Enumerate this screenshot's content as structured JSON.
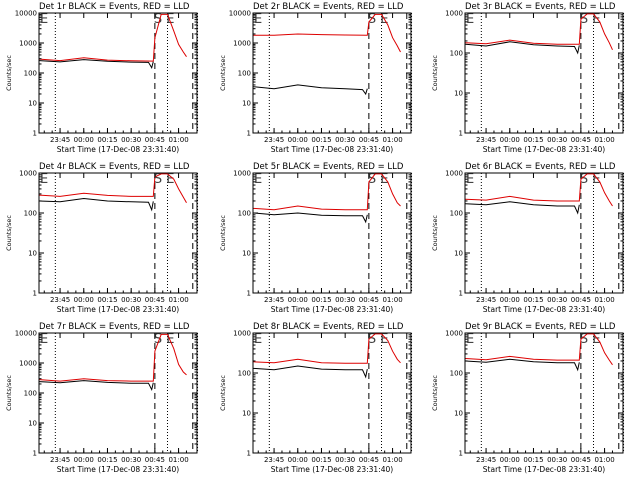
{
  "figure": {
    "colors": {
      "events": "#000000",
      "lld": "#dd0000",
      "axis": "#000000",
      "dashed": "#000000",
      "dotted": "#000000",
      "marker": "#444444"
    },
    "marker_left": "E",
    "marker_right": "S E"
  },
  "chart_data": [
    {
      "type": "line",
      "title": "Det 1r BLACK = Events, RED = LLD",
      "ylabel": "Counts/sec",
      "xlabel": "Start Time (17-Dec-08 23:31:40)",
      "yscale": "log",
      "ylim": [
        1,
        10000
      ],
      "y_ticks": [
        "1",
        "10",
        "100",
        "1000",
        "10000"
      ],
      "x_ticks": [
        "23:45",
        "00:00",
        "00:15",
        "00:30",
        "00:45",
        "01:00"
      ],
      "dashed_lines": [
        "00:45",
        "01:09"
      ],
      "dotted_lines": [
        "23:42",
        "00:53",
        "01:12"
      ],
      "series": [
        {
          "name": "Events",
          "x": [
            "23:32",
            "23:45",
            "00:00",
            "00:15",
            "00:30",
            "00:41",
            "00:43",
            "00:44"
          ],
          "values": [
            260,
            235,
            280,
            245,
            230,
            225,
            150,
            240
          ]
        },
        {
          "name": "LLD",
          "x": [
            "23:32",
            "23:45",
            "00:00",
            "00:15",
            "00:30",
            "00:44",
            "00:45",
            "00:49",
            "00:53",
            "00:57",
            "01:00",
            "01:03",
            "01:05"
          ],
          "values": [
            290,
            260,
            320,
            270,
            255,
            250,
            1500,
            9000,
            9000,
            2500,
            900,
            500,
            350
          ]
        }
      ]
    },
    {
      "type": "line",
      "title": "Det 2r BLACK = Events, RED = LLD",
      "ylabel": "Counts/sec",
      "xlabel": "Start Time (17-Dec-08 23:31:40)",
      "yscale": "log",
      "ylim": [
        1,
        10000
      ],
      "y_ticks": [
        "1",
        "10",
        "100",
        "1000",
        "10000"
      ],
      "x_ticks": [
        "23:45",
        "00:00",
        "00:15",
        "00:30",
        "00:45",
        "01:00"
      ],
      "dashed_lines": [
        "00:45",
        "01:09"
      ],
      "dotted_lines": [
        "23:42",
        "00:53",
        "01:12"
      ],
      "series": [
        {
          "name": "Events",
          "x": [
            "23:32",
            "23:45",
            "00:00",
            "00:15",
            "00:30",
            "00:41",
            "00:43",
            "00:44"
          ],
          "values": [
            35,
            30,
            40,
            32,
            30,
            28,
            20,
            30
          ]
        },
        {
          "name": "LLD",
          "x": [
            "23:32",
            "23:45",
            "00:00",
            "00:15",
            "00:30",
            "00:44",
            "00:45",
            "00:49",
            "00:53",
            "00:57",
            "01:00",
            "01:03",
            "01:05"
          ],
          "values": [
            1800,
            1800,
            2000,
            1900,
            1850,
            1800,
            5000,
            9000,
            9000,
            4000,
            1500,
            800,
            500
          ]
        }
      ]
    },
    {
      "type": "line",
      "title": "Det 3r BLACK = Events, RED = LLD",
      "ylabel": "Counts/sec",
      "xlabel": "Start Time (17-Dec-08 23:31:40)",
      "yscale": "log",
      "ylim": [
        1,
        1000
      ],
      "y_ticks": [
        "1",
        "10",
        "100",
        "1000"
      ],
      "x_ticks": [
        "23:45",
        "00:00",
        "00:15",
        "00:30",
        "00:45",
        "01:00"
      ],
      "dashed_lines": [
        "00:45",
        "01:09"
      ],
      "dotted_lines": [
        "23:42",
        "00:53",
        "01:12"
      ],
      "series": [
        {
          "name": "Events",
          "x": [
            "23:32",
            "23:45",
            "00:00",
            "00:15",
            "00:30",
            "00:41",
            "00:43",
            "00:44"
          ],
          "values": [
            165,
            150,
            190,
            160,
            150,
            145,
            100,
            155
          ]
        },
        {
          "name": "LLD",
          "x": [
            "23:32",
            "23:45",
            "00:00",
            "00:15",
            "00:30",
            "00:44",
            "00:45",
            "00:49",
            "00:53",
            "00:57",
            "01:00",
            "01:03",
            "01:05"
          ],
          "values": [
            180,
            170,
            210,
            175,
            165,
            165,
            700,
            950,
            950,
            600,
            300,
            180,
            120
          ]
        }
      ]
    },
    {
      "type": "line",
      "title": "Det 4r BLACK = Events, RED = LLD",
      "ylabel": "Counts/sec",
      "xlabel": "Start Time (17-Dec-08 23:31:40)",
      "yscale": "log",
      "ylim": [
        1,
        1000
      ],
      "y_ticks": [
        "1",
        "10",
        "100",
        "1000"
      ],
      "x_ticks": [
        "23:45",
        "00:00",
        "00:15",
        "00:30",
        "00:45",
        "01:00"
      ],
      "dashed_lines": [
        "00:45",
        "01:09"
      ],
      "dotted_lines": [
        "23:42",
        "00:53",
        "01:12"
      ],
      "series": [
        {
          "name": "Events",
          "x": [
            "23:32",
            "23:45",
            "00:00",
            "00:15",
            "00:30",
            "00:41",
            "00:43",
            "00:44"
          ],
          "values": [
            200,
            190,
            230,
            200,
            190,
            185,
            120,
            195
          ]
        },
        {
          "name": "LLD",
          "x": [
            "23:32",
            "23:45",
            "00:00",
            "00:15",
            "00:30",
            "00:44",
            "00:45",
            "00:49",
            "00:53",
            "00:57",
            "01:00",
            "01:03",
            "01:05"
          ],
          "values": [
            280,
            260,
            310,
            275,
            260,
            260,
            800,
            950,
            950,
            700,
            400,
            250,
            180
          ]
        }
      ]
    },
    {
      "type": "line",
      "title": "Det 5r BLACK = Events, RED = LLD",
      "ylabel": "Counts/sec",
      "xlabel": "Start Time (17-Dec-08 23:31:40)",
      "yscale": "log",
      "ylim": [
        1,
        1000
      ],
      "y_ticks": [
        "1",
        "10",
        "100",
        "1000"
      ],
      "x_ticks": [
        "23:45",
        "00:00",
        "00:15",
        "00:30",
        "00:45",
        "01:00"
      ],
      "dashed_lines": [
        "00:45",
        "01:09"
      ],
      "dotted_lines": [
        "23:42",
        "00:53",
        "01:12"
      ],
      "series": [
        {
          "name": "Events",
          "x": [
            "23:32",
            "23:45",
            "00:00",
            "00:15",
            "00:30",
            "00:41",
            "00:43",
            "00:44"
          ],
          "values": [
            100,
            90,
            100,
            88,
            85,
            85,
            60,
            90
          ]
        },
        {
          "name": "LLD",
          "x": [
            "23:32",
            "23:45",
            "00:00",
            "00:15",
            "00:30",
            "00:44",
            "00:45",
            "00:49",
            "00:53",
            "00:57",
            "01:00",
            "01:03",
            "01:05"
          ],
          "values": [
            130,
            120,
            150,
            125,
            120,
            120,
            600,
            950,
            950,
            600,
            300,
            180,
            150
          ]
        }
      ]
    },
    {
      "type": "line",
      "title": "Det 6r BLACK = Events, RED = LLD",
      "ylabel": "Counts/sec",
      "xlabel": "Start Time (17-Dec-08 23:31:40)",
      "yscale": "log",
      "ylim": [
        1,
        1000
      ],
      "y_ticks": [
        "1",
        "10",
        "100",
        "1000"
      ],
      "x_ticks": [
        "23:45",
        "00:00",
        "00:15",
        "00:30",
        "00:45",
        "01:00"
      ],
      "dashed_lines": [
        "00:45",
        "01:09"
      ],
      "dotted_lines": [
        "23:42",
        "00:53",
        "01:12"
      ],
      "series": [
        {
          "name": "Events",
          "x": [
            "23:32",
            "23:45",
            "00:00",
            "00:15",
            "00:30",
            "00:41",
            "00:43",
            "00:44"
          ],
          "values": [
            170,
            160,
            190,
            160,
            150,
            150,
            100,
            160
          ]
        },
        {
          "name": "LLD",
          "x": [
            "23:32",
            "23:45",
            "00:00",
            "00:15",
            "00:30",
            "00:44",
            "00:45",
            "00:49",
            "00:53",
            "00:57",
            "01:00",
            "01:03",
            "01:05"
          ],
          "values": [
            220,
            210,
            260,
            210,
            200,
            200,
            700,
            950,
            950,
            600,
            320,
            200,
            150
          ]
        }
      ]
    },
    {
      "type": "line",
      "title": "Det 7r BLACK = Events, RED = LLD",
      "ylabel": "Counts/sec",
      "xlabel": "Start Time (17-Dec-08 23:31:40)",
      "yscale": "log",
      "ylim": [
        1,
        10000
      ],
      "y_ticks": [
        "1",
        "10",
        "100",
        "1000",
        "10000"
      ],
      "x_ticks": [
        "23:45",
        "00:00",
        "00:15",
        "00:30",
        "00:45",
        "01:00"
      ],
      "dashed_lines": [
        "00:45",
        "01:09"
      ],
      "dotted_lines": [
        "23:42",
        "00:53",
        "01:12"
      ],
      "series": [
        {
          "name": "Events",
          "x": [
            "23:32",
            "23:45",
            "00:00",
            "00:15",
            "00:30",
            "00:41",
            "00:43",
            "00:44"
          ],
          "values": [
            240,
            220,
            260,
            225,
            210,
            210,
            130,
            220
          ]
        },
        {
          "name": "LLD",
          "x": [
            "23:32",
            "23:45",
            "00:00",
            "00:15",
            "00:30",
            "00:44",
            "00:45",
            "00:49",
            "00:53",
            "00:57",
            "01:00",
            "01:03",
            "01:05"
          ],
          "values": [
            280,
            250,
            300,
            260,
            250,
            250,
            2500,
            9000,
            9000,
            3000,
            900,
            500,
            400
          ]
        }
      ]
    },
    {
      "type": "line",
      "title": "Det 8r BLACK = Events, RED = LLD",
      "ylabel": "Counts/sec",
      "xlabel": "Start Time (17-Dec-08 23:31:40)",
      "yscale": "log",
      "ylim": [
        1,
        1000
      ],
      "y_ticks": [
        "1",
        "10",
        "100",
        "1000"
      ],
      "x_ticks": [
        "23:45",
        "00:00",
        "00:15",
        "00:30",
        "00:45",
        "01:00"
      ],
      "dashed_lines": [
        "00:45",
        "01:09"
      ],
      "dotted_lines": [
        "23:42",
        "00:53",
        "01:12"
      ],
      "series": [
        {
          "name": "Events",
          "x": [
            "23:32",
            "23:45",
            "00:00",
            "00:15",
            "00:30",
            "00:41",
            "00:43",
            "00:44"
          ],
          "values": [
            130,
            120,
            150,
            125,
            120,
            120,
            80,
            125
          ]
        },
        {
          "name": "LLD",
          "x": [
            "23:32",
            "23:45",
            "00:00",
            "00:15",
            "00:30",
            "00:44",
            "00:45",
            "00:49",
            "00:53",
            "00:57",
            "01:00",
            "01:03",
            "01:05"
          ],
          "values": [
            190,
            180,
            220,
            180,
            175,
            175,
            700,
            950,
            950,
            650,
            350,
            220,
            180
          ]
        }
      ]
    },
    {
      "type": "line",
      "title": "Det 9r BLACK = Events, RED = LLD",
      "ylabel": "Counts/sec",
      "xlabel": "Start Time (17-Dec-08 23:31:40)",
      "yscale": "log",
      "ylim": [
        1,
        1000
      ],
      "y_ticks": [
        "1",
        "10",
        "100",
        "1000"
      ],
      "x_ticks": [
        "23:45",
        "00:00",
        "00:15",
        "00:30",
        "00:45",
        "01:00"
      ],
      "dashed_lines": [
        "00:45",
        "01:09"
      ],
      "dotted_lines": [
        "23:42",
        "00:53",
        "01:12"
      ],
      "series": [
        {
          "name": "Events",
          "x": [
            "23:32",
            "23:45",
            "00:00",
            "00:15",
            "00:30",
            "00:41",
            "00:43",
            "00:44"
          ],
          "values": [
            200,
            185,
            220,
            190,
            180,
            180,
            120,
            185
          ]
        },
        {
          "name": "LLD",
          "x": [
            "23:32",
            "23:45",
            "00:00",
            "00:15",
            "00:30",
            "00:44",
            "00:45",
            "00:49",
            "00:53",
            "00:57",
            "01:00",
            "01:03",
            "01:05"
          ],
          "values": [
            230,
            215,
            260,
            220,
            210,
            210,
            700,
            950,
            950,
            600,
            320,
            210,
            160
          ]
        }
      ]
    }
  ]
}
